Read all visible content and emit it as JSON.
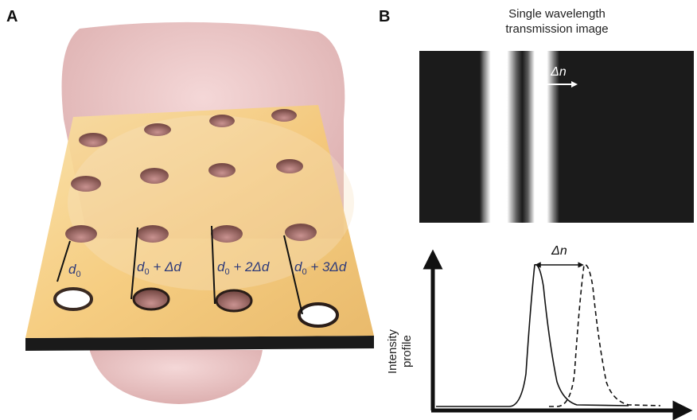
{
  "panels": {
    "a": {
      "letter": "A",
      "labels": [
        {
          "base": "d",
          "sub": "0",
          "rest": ""
        },
        {
          "base": "d",
          "sub": "0",
          "rest": " + Δd"
        },
        {
          "base": "d",
          "sub": "0",
          "rest": " + 2Δd"
        },
        {
          "base": "d",
          "sub": "0",
          "rest": " + 3Δd"
        }
      ]
    },
    "b": {
      "letter": "B",
      "title_line1": "Single wavelength",
      "title_line2": "transmission image",
      "image_delta": "Δn",
      "plot_delta": "Δn",
      "ylabel_line1": "Intensity",
      "ylabel_line2": "profile"
    }
  },
  "colors": {
    "plate_top": "#f6cf84",
    "plate_edge": "#1a1a1a",
    "cylinder": "#e8b8b8",
    "label_color": "#2d3a7a",
    "stripe_dark": "#1b1b1b"
  }
}
